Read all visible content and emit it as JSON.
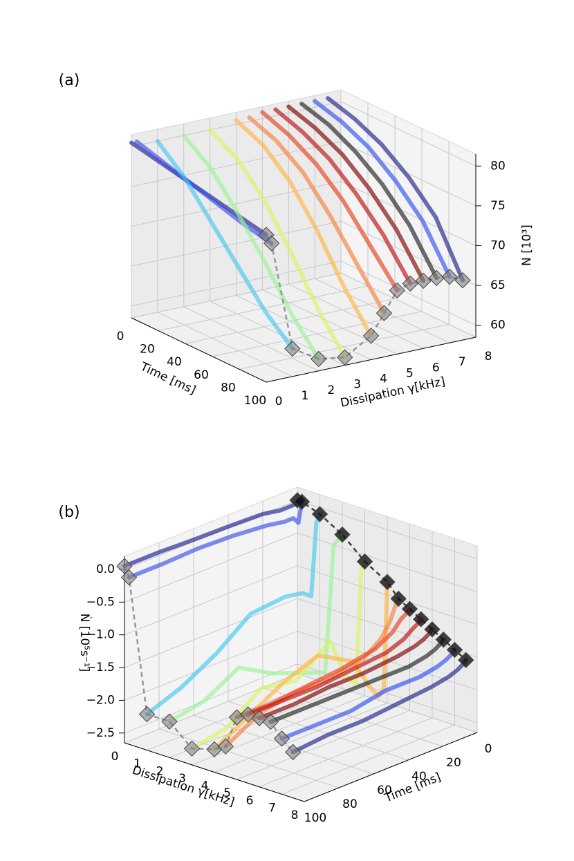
{
  "chart_data": [
    {
      "type": "line3d",
      "panel_label": "(a)",
      "xlabel": "Time [ms]",
      "ylabel": "Dissipation γ[kHz]",
      "zlabel": "N [10³]",
      "x": [
        0,
        20,
        40,
        60,
        80,
        100
      ],
      "xlim": [
        0,
        100
      ],
      "ylim": [
        0,
        8
      ],
      "zlim": [
        58.5,
        81.5
      ],
      "xticks": [
        0,
        20,
        40,
        60,
        80,
        100
      ],
      "yticks": [
        0,
        1,
        2,
        3,
        4,
        5,
        6,
        7,
        8
      ],
      "zticks": [
        60,
        65,
        70,
        75,
        80
      ],
      "grid": true,
      "end_markers": true,
      "start_markers": false,
      "end_marker_color": "#808080",
      "start_marker_color": "#111111",
      "series": [
        {
          "gamma": 0,
          "color": "#1f1f8f",
          "values": [
            80.5,
            79.8,
            79.1,
            78.4,
            77.7,
            77
          ]
        },
        {
          "gamma": 0.2,
          "color": "#3a50e8",
          "values": [
            80.5,
            79.5,
            78.5,
            77.5,
            76.5,
            75.8
          ]
        },
        {
          "gamma": 1,
          "color": "#45c8f0",
          "values": [
            80,
            77,
            73,
            69,
            65,
            62
          ]
        },
        {
          "gamma": 2,
          "color": "#98f598",
          "values": [
            80,
            77.5,
            73.5,
            69,
            64,
            60
          ]
        },
        {
          "gamma": 3,
          "color": "#d8f562",
          "values": [
            80,
            78,
            74.5,
            69.5,
            64,
            59.5
          ]
        },
        {
          "gamma": 4,
          "color": "#ffb545",
          "values": [
            80.5,
            79,
            76,
            71.5,
            66,
            61.5
          ]
        },
        {
          "gamma": 4.5,
          "color": "#f88040",
          "values": [
            80.5,
            79.2,
            76.8,
            73,
            68.5,
            64
          ]
        },
        {
          "gamma": 5,
          "color": "#e84020",
          "values": [
            80.8,
            79.5,
            77.5,
            74.5,
            70.5,
            66.5
          ]
        },
        {
          "gamma": 5.5,
          "color": "#c01010",
          "values": [
            80.8,
            79.6,
            77.8,
            75,
            71.5,
            67
          ]
        },
        {
          "gamma": 6,
          "color": "#800000",
          "values": [
            80.8,
            79.7,
            78,
            75.3,
            71.8,
            67
          ]
        },
        {
          "gamma": 6.5,
          "color": "#202020",
          "values": [
            80.8,
            79.8,
            78,
            75.5,
            72,
            67
          ]
        },
        {
          "gamma": 7,
          "color": "#3050f0",
          "values": [
            80.8,
            79.8,
            78.2,
            75.6,
            72.2,
            66.8
          ]
        },
        {
          "gamma": 7.5,
          "color": "#20208a",
          "values": [
            80.8,
            79.8,
            78.2,
            75.7,
            72.3,
            66
          ]
        }
      ]
    },
    {
      "type": "line3d",
      "panel_label": "(b)",
      "xlabel": "Time [ms]",
      "ylabel": "Dissipation γ[kHz]",
      "zlabel": "Ṅ [10⁵s⁻¹]",
      "x": [
        0,
        2,
        5,
        10,
        20,
        40,
        60,
        80,
        100
      ],
      "xlim": [
        0,
        100
      ],
      "ylim": [
        0,
        8
      ],
      "zlim": [
        -2.65,
        0.2
      ],
      "xticks": [
        0,
        20,
        40,
        60,
        80,
        100
      ],
      "yticks": [
        0,
        1,
        2,
        3,
        4,
        5,
        6,
        7,
        8
      ],
      "zticks": [
        {
          "value": -2.5,
          "label": "−2.5"
        },
        {
          "value": -2.0,
          "label": "−2.0"
        },
        {
          "value": -1.5,
          "label": "−1.5"
        },
        {
          "value": -1.0,
          "label": "−1.0"
        },
        {
          "value": -0.5,
          "label": "−0.5"
        },
        {
          "value": 0,
          "label": "0.0"
        }
      ],
      "grid": true,
      "end_markers": true,
      "start_markers": true,
      "end_marker_color": "#808080",
      "start_marker_color": "#111111",
      "series": [
        {
          "gamma": 0,
          "color": "#1f1f8f",
          "values": [
            0,
            -0.05,
            -0.05,
            -0.05,
            0,
            0.02,
            0.03,
            0.05,
            0.05
          ]
        },
        {
          "gamma": 0.2,
          "color": "#3a50e8",
          "values": [
            0,
            -0.3,
            -0.2,
            -0.2,
            -0.15,
            -0.1,
            -0.08,
            -0.1,
            -0.1
          ]
        },
        {
          "gamma": 1,
          "color": "#45c8f0",
          "values": [
            -0.1,
            -0.2,
            -1.3,
            -1.2,
            -1.15,
            -1.2,
            -1.6,
            -1.9,
            -2.1
          ]
        },
        {
          "gamma": 2,
          "color": "#98f598",
          "values": [
            -0.3,
            -0.35,
            -0.4,
            -2.3,
            -2.2,
            -2.0,
            -1.7,
            -2.0,
            -2.1
          ]
        },
        {
          "gamma": 3,
          "color": "#d8f562",
          "values": [
            -0.6,
            -0.7,
            -2.4,
            -2.3,
            -1.6,
            -2.0,
            -1.9,
            -2.3,
            -2.4
          ]
        },
        {
          "gamma": 4,
          "color": "#ffb545",
          "values": [
            -0.8,
            -2.4,
            -2.5,
            -2.3,
            -1.8,
            -1.5,
            -1.7,
            -2.0,
            -2.3
          ]
        },
        {
          "gamma": 4.5,
          "color": "#f88040",
          "values": [
            -1.0,
            -1.1,
            -1.3,
            -1.5,
            -1.7,
            -1.8,
            -1.8,
            -1.9,
            -2.2
          ]
        },
        {
          "gamma": 5,
          "color": "#e84020",
          "values": [
            -1.1,
            -1.15,
            -1.2,
            -1.35,
            -1.5,
            -1.6,
            -1.65,
            -1.7,
            -1.7
          ]
        },
        {
          "gamma": 5.5,
          "color": "#c01010",
          "values": [
            -1.2,
            -1.25,
            -1.3,
            -1.4,
            -1.5,
            -1.55,
            -1.6,
            -1.6,
            -1.6
          ]
        },
        {
          "gamma": 6,
          "color": "#800000",
          "values": [
            -1.3,
            -1.35,
            -1.4,
            -1.45,
            -1.5,
            -1.55,
            -1.55,
            -1.6,
            -1.6
          ]
        },
        {
          "gamma": 6.5,
          "color": "#202020",
          "values": [
            -1.4,
            -1.45,
            -1.5,
            -1.55,
            -1.6,
            -1.6,
            -1.6,
            -1.6,
            -1.6
          ]
        },
        {
          "gamma": 7,
          "color": "#3050f0",
          "values": [
            -1.5,
            -1.55,
            -1.6,
            -1.65,
            -1.7,
            -1.7,
            -1.8,
            -1.8,
            -1.8
          ]
        },
        {
          "gamma": 7.5,
          "color": "#20208a",
          "values": [
            -1.6,
            -1.65,
            -1.7,
            -1.75,
            -1.8,
            -1.85,
            -1.9,
            -1.9,
            -1.95
          ]
        }
      ]
    }
  ]
}
